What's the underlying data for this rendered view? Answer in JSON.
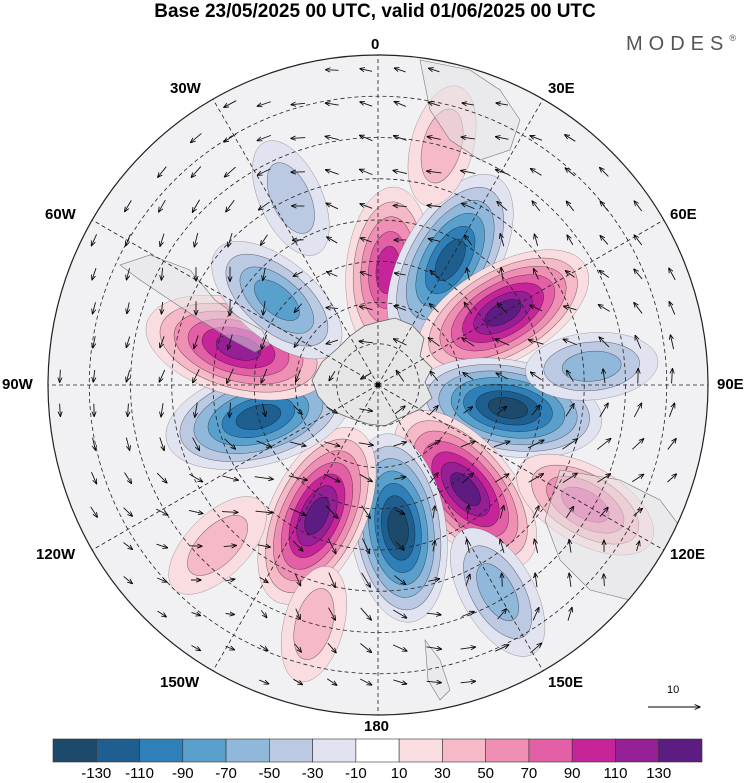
{
  "title": "Base 23/05/2025 00 UTC, valid 01/06/2025 00 UTC",
  "brand": "MODES",
  "brand_mark": "®",
  "longitude_labels": {
    "0": "0",
    "30E": "30E",
    "60E": "60E",
    "90E": "90E",
    "120E": "120E",
    "150E": "150E",
    "180": "180",
    "150W": "150W",
    "120W": "120W",
    "90W": "90W",
    "60W": "60W",
    "30W": "30W"
  },
  "vector_scale_label": "10",
  "colorbar": {
    "tick_labels": [
      "-130",
      "-110",
      "-90",
      "-70",
      "-50",
      "-30",
      "-10",
      "10",
      "30",
      "50",
      "70",
      "90",
      "110",
      "130"
    ],
    "colors": [
      "#1d4a6b",
      "#1f5f8f",
      "#2f7fb8",
      "#5aa0cc",
      "#8fb8da",
      "#bcc9e3",
      "#e2e3f0",
      "#ffffff",
      "#f9dde1",
      "#f5b9c7",
      "#ef8fb4",
      "#e35fa6",
      "#c6259a",
      "#951f94",
      "#5c1c82"
    ]
  },
  "anomalies": [
    {
      "lon": 5,
      "lat": -62,
      "value": 85
    },
    {
      "lon": 30,
      "lat": -55,
      "value": -120
    },
    {
      "lon": 60,
      "lat": -55,
      "value": 135
    },
    {
      "lon": 100,
      "lat": -58,
      "value": -125
    },
    {
      "lon": 140,
      "lat": -57,
      "value": 130
    },
    {
      "lon": 172,
      "lat": -55,
      "value": -130
    },
    {
      "lon": -155,
      "lat": -55,
      "value": 130
    },
    {
      "lon": -105,
      "lat": -60,
      "value": -110
    },
    {
      "lon": -75,
      "lat": -55,
      "value": 110
    },
    {
      "lon": -50,
      "lat": -58,
      "value": -75
    },
    {
      "lon": -25,
      "lat": -40,
      "value": -40
    },
    {
      "lon": 120,
      "lat": -32,
      "value": 70
    },
    {
      "lon": 150,
      "lat": -32,
      "value": -60
    },
    {
      "lon": 85,
      "lat": -38,
      "value": -50
    },
    {
      "lon": 15,
      "lat": -30,
      "value": 40
    },
    {
      "lon": -135,
      "lat": -35,
      "value": 40
    },
    {
      "lon": -165,
      "lat": -30,
      "value": 35
    }
  ]
}
